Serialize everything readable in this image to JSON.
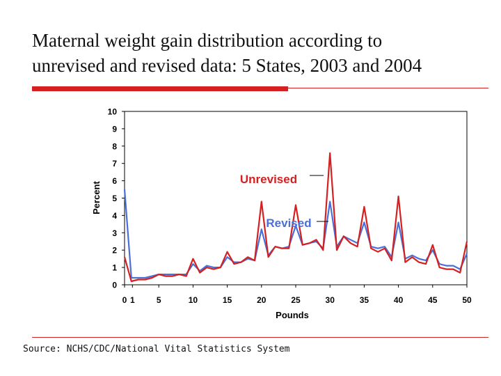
{
  "slide": {
    "title_line1": "Maternal weight gain distribution according to",
    "title_line2": "unrevised and revised data:  5 States, 2003 and 2004",
    "source": "Source: NCHS/CDC/National Vital Statistics System",
    "accent_color": "#d42020"
  },
  "chart_data": {
    "type": "line",
    "title": "",
    "xlabel": "Pounds",
    "ylabel": "Percent",
    "xlim": [
      0,
      50
    ],
    "ylim": [
      0,
      10
    ],
    "x_ticks": [
      "0",
      "1",
      "5",
      "10",
      "15",
      "20",
      "25",
      "30",
      "35",
      "40",
      "45",
      "50"
    ],
    "y_ticks": [
      0,
      1,
      2,
      3,
      4,
      5,
      6,
      7,
      8,
      9,
      10
    ],
    "grid": false,
    "x": [
      0,
      1,
      2,
      3,
      4,
      5,
      6,
      7,
      8,
      9,
      10,
      11,
      12,
      13,
      14,
      15,
      16,
      17,
      18,
      19,
      20,
      21,
      22,
      23,
      24,
      25,
      26,
      27,
      28,
      29,
      30,
      31,
      32,
      33,
      34,
      35,
      36,
      37,
      38,
      39,
      40,
      41,
      42,
      43,
      44,
      45,
      46,
      47,
      48,
      49,
      50
    ],
    "series": [
      {
        "name": "Unrevised",
        "color": "#d42020",
        "values": [
          1.6,
          0.2,
          0.3,
          0.3,
          0.4,
          0.6,
          0.5,
          0.5,
          0.6,
          0.5,
          1.5,
          0.7,
          1.0,
          0.9,
          1.0,
          1.9,
          1.2,
          1.3,
          1.6,
          1.4,
          4.8,
          1.6,
          2.2,
          2.1,
          2.1,
          4.6,
          2.3,
          2.4,
          2.6,
          2.0,
          7.6,
          2.0,
          2.8,
          2.4,
          2.2,
          4.5,
          2.1,
          1.9,
          2.1,
          1.4,
          5.1,
          1.3,
          1.6,
          1.3,
          1.2,
          2.3,
          1.0,
          0.9,
          0.9,
          0.7,
          2.5
        ]
      },
      {
        "name": "Revised",
        "color": "#4a6fd8",
        "values": [
          5.5,
          0.4,
          0.4,
          0.4,
          0.5,
          0.6,
          0.6,
          0.6,
          0.6,
          0.6,
          1.2,
          0.8,
          1.1,
          1.0,
          1.0,
          1.6,
          1.3,
          1.3,
          1.5,
          1.4,
          3.2,
          1.7,
          2.2,
          2.1,
          2.2,
          3.4,
          2.3,
          2.4,
          2.5,
          2.1,
          4.8,
          2.2,
          2.8,
          2.6,
          2.4,
          3.6,
          2.2,
          2.1,
          2.2,
          1.6,
          3.6,
          1.5,
          1.7,
          1.5,
          1.4,
          2.0,
          1.2,
          1.1,
          1.1,
          0.9,
          1.8
        ]
      }
    ],
    "annotations": [
      {
        "text": "Unrevised",
        "series": "Unrevised",
        "color": "#d42020"
      },
      {
        "text": "Revised",
        "series": "Revised",
        "color": "#4a6fd8"
      }
    ]
  }
}
